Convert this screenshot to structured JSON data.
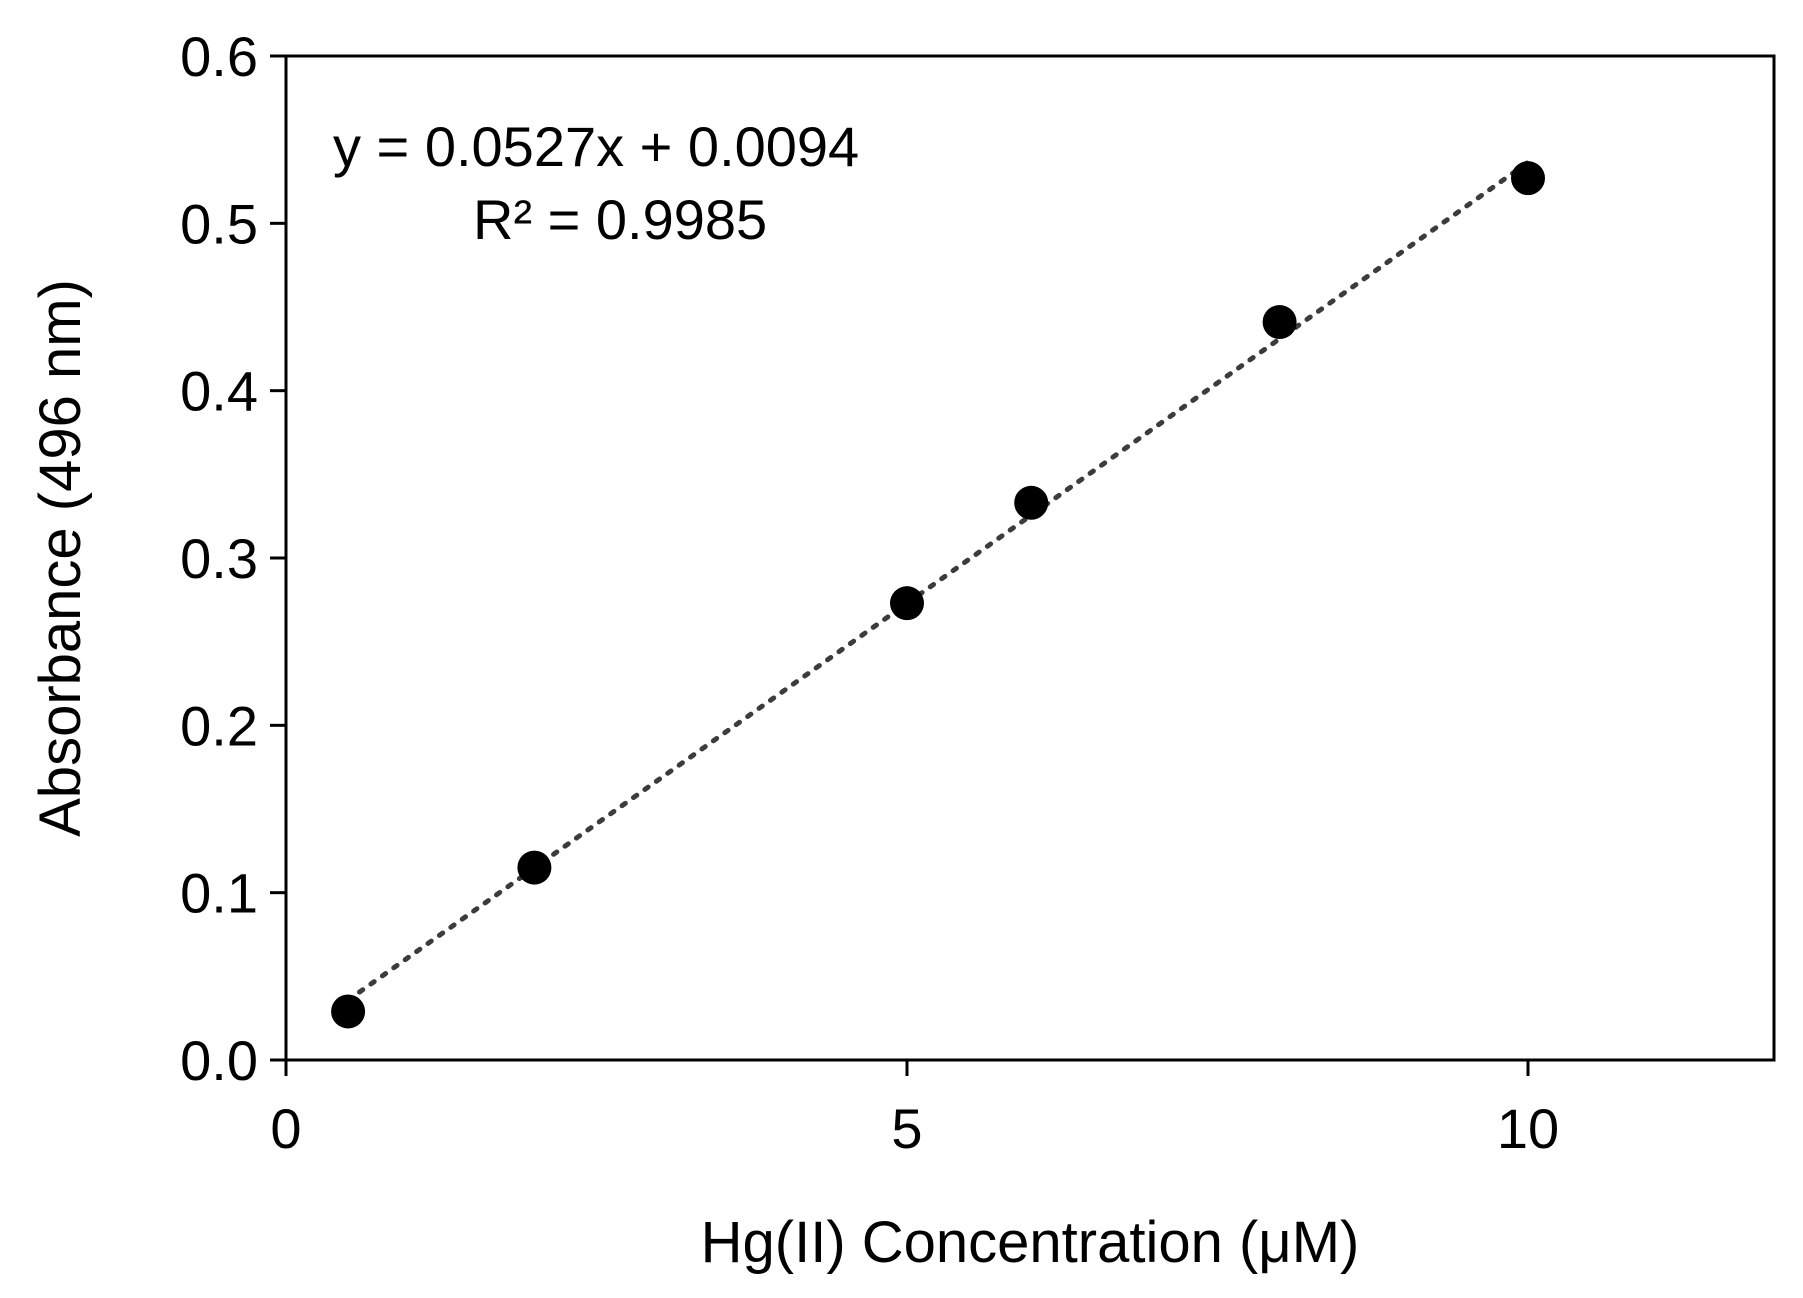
{
  "chart_data": {
    "type": "scatter",
    "title": "",
    "xlabel": "Hg(II) Concentration (μM)",
    "ylabel": "Absorbance (496 nm)",
    "xlim": [
      0,
      12
    ],
    "ylim": [
      0,
      0.6
    ],
    "xticks": [
      0,
      5,
      10
    ],
    "xtick_labels": [
      "0",
      "5",
      "10"
    ],
    "yticks": [
      0,
      0.1,
      0.2,
      0.3,
      0.4,
      0.5,
      0.6
    ],
    "ytick_labels": [
      "0.0",
      "0.1",
      "0.2",
      "0.3",
      "0.4",
      "0.5",
      "0.6"
    ],
    "grid": false,
    "legend": "none",
    "series": [
      {
        "x": [
          0.5,
          2,
          5,
          6,
          8,
          10
        ],
        "y": [
          0.029,
          0.115,
          0.273,
          0.333,
          0.441,
          0.527
        ],
        "marker_color": "#000000"
      }
    ],
    "trendline": {
      "style": "dotted",
      "slope": 0.0527,
      "intercept": 0.0094,
      "x_range": [
        0.5,
        10
      ]
    },
    "annotations": {
      "equation": "y = 0.0527x + 0.0094",
      "r_squared": "R² = 0.9985"
    }
  }
}
